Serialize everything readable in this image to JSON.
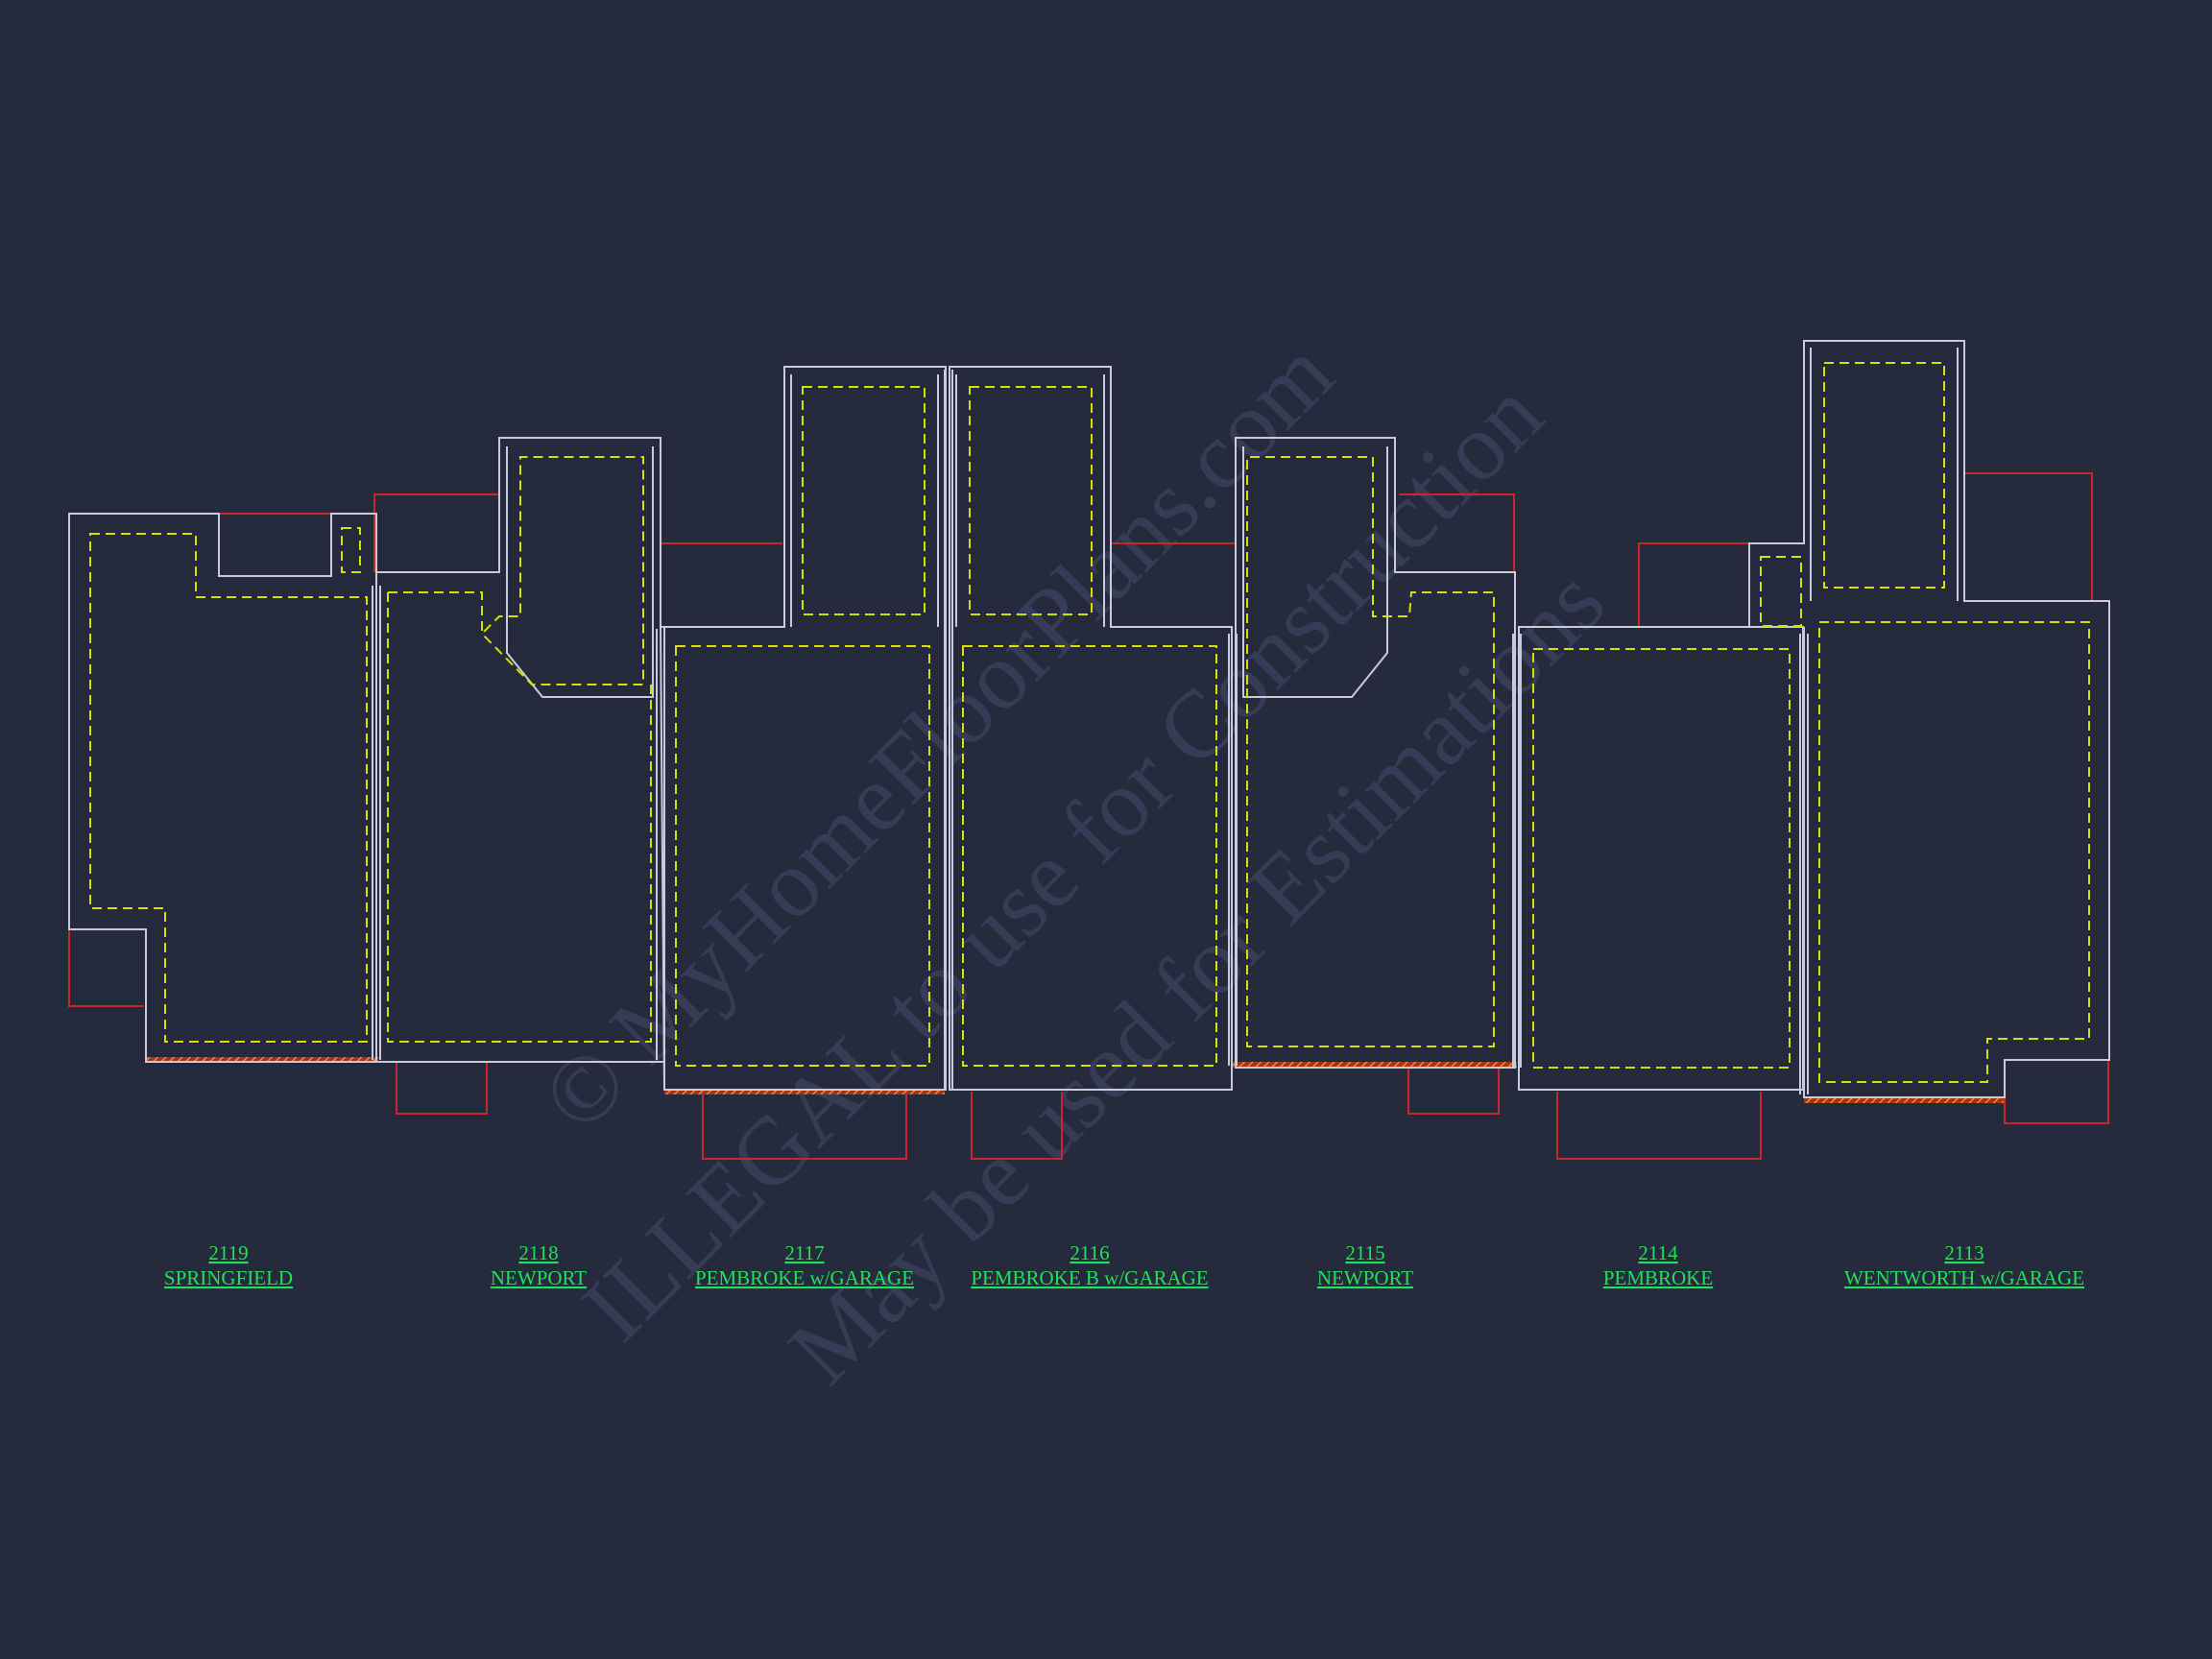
{
  "units": [
    {
      "number": "2119",
      "name": "SPRINGFIELD"
    },
    {
      "number": "2118",
      "name": "NEWPORT"
    },
    {
      "number": "2117",
      "name": "PEMBROKE w/GARAGE"
    },
    {
      "number": "2116",
      "name": "PEMBROKE B w/GARAGE"
    },
    {
      "number": "2115",
      "name": "NEWPORT"
    },
    {
      "number": "2114",
      "name": "PEMBROKE"
    },
    {
      "number": "2113",
      "name": "WENTWORTH w/GARAGE"
    }
  ],
  "watermark": {
    "line1": "© MyHomeFloorPlans.com",
    "line2": "ILLEGAL to use for Construction",
    "line3": "May be used for Estimations"
  },
  "colors": {
    "background": "#262a3d",
    "wall": "#c8cbdc",
    "foundation_dashed": "#d8e000",
    "property_line": "#c8262d",
    "hatch": "#e8741e",
    "label": "#22e05a",
    "watermark": "#39405a"
  }
}
